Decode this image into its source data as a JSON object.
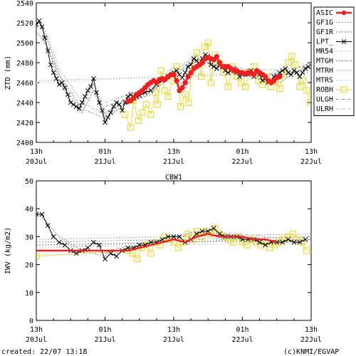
{
  "footer": {
    "created": "created: 22/07 13:18",
    "credit": "(c)KNMI/EGVAP"
  },
  "chart_data": [
    {
      "type": "line",
      "title": "",
      "ylabel": "ZTD (mm)",
      "xlabel": "",
      "x_unit": "hours since 20Jul 13h",
      "xlim": [
        0,
        48
      ],
      "ylim": [
        2400,
        2540
      ],
      "yticks": [
        2400,
        2420,
        2440,
        2460,
        2480,
        2500,
        2520,
        2540
      ],
      "xticks": [
        {
          "x": 0,
          "line1": "13h",
          "line2": "20Jul"
        },
        {
          "x": 12,
          "line1": "01h",
          "line2": "21Jul"
        },
        {
          "x": 24,
          "line1": "13h",
          "line2": "21Jul"
        },
        {
          "x": 36,
          "line1": "01h",
          "line2": "22Jul"
        },
        {
          "x": 48,
          "line1": "13h",
          "line2": "22Jul"
        }
      ],
      "legend_position": "right",
      "legend": [
        "ASIC",
        "GF1G",
        "GF1R",
        "LPT_",
        "MR54",
        "MTGH",
        "MTRH",
        "MTRS",
        "ROBH",
        "ULGH",
        "ULRH"
      ],
      "series": [
        {
          "name": "LPT_",
          "color": "#000000",
          "marker": "x",
          "x": [
            0,
            0.5,
            1,
            1.5,
            2,
            2.5,
            3,
            3.5,
            4,
            4.5,
            5,
            5.5,
            6,
            6.5,
            7,
            7.5,
            8,
            8.5,
            9,
            9.5,
            10,
            10.5,
            11,
            11.5,
            12,
            12.5,
            13,
            13.5,
            14,
            14.5,
            15,
            15.5,
            16,
            16.5,
            17,
            17.5,
            18,
            19,
            20,
            21,
            22,
            23,
            24,
            24.5,
            25,
            25.5,
            26,
            26.5,
            27,
            27.5,
            28,
            28.5,
            29,
            29.5,
            30,
            30.5,
            31,
            31.5,
            32,
            32.5,
            33,
            33.5,
            34,
            34.5,
            35,
            35.5,
            36,
            36.5,
            37,
            37.5,
            38,
            38.5,
            39,
            39.5,
            40,
            40.5,
            41,
            41.5,
            42,
            42.5,
            43,
            43.5,
            44,
            44.5,
            45,
            45.5,
            46,
            46.5,
            47,
            47.5
          ],
          "y": [
            2518,
            2522,
            2516,
            2505,
            2492,
            2478,
            2470,
            2464,
            2458,
            2460,
            2455,
            2448,
            2440,
            2438,
            2436,
            2434,
            2440,
            2446,
            2452,
            2456,
            2464,
            2450,
            2440,
            2432,
            2420,
            2425,
            2430,
            2436,
            2440,
            2438,
            2432,
            2440,
            2446,
            2448,
            2444,
            2446,
            2447,
            2450,
            2452,
            2458,
            2462,
            2466,
            2470,
            2472,
            2468,
            2465,
            2470,
            2476,
            2478,
            2484,
            2482,
            2478,
            2484,
            2488,
            2486,
            2478,
            2476,
            2474,
            2478,
            2476,
            2472,
            2470,
            2472,
            2474,
            2470,
            2466,
            2468,
            2470,
            2468,
            2472,
            2466,
            2470,
            2468,
            2462,
            2464,
            2460,
            2462,
            2466,
            2466,
            2470,
            2472,
            2474,
            2470,
            2468,
            2472,
            2470,
            2466,
            2470,
            2474,
            2476
          ]
        },
        {
          "name": "ASIC",
          "color": "#ee2020",
          "marker": "circle",
          "x": [
            16,
            16.5,
            17,
            17.5,
            18,
            18.5,
            19,
            19.5,
            20,
            20.5,
            21,
            21.5,
            22,
            22.5,
            23,
            23.5,
            24,
            24.5,
            25,
            25.5,
            26,
            26.5,
            27,
            27.5,
            28,
            28.5,
            29,
            29.5,
            30,
            30.5,
            31,
            31.5,
            32,
            32.5,
            33,
            33.5,
            34,
            34.5,
            35,
            35.5,
            36,
            36.5,
            37,
            37.5,
            38,
            38.5,
            39,
            39.5,
            40,
            40.5,
            41,
            41.5,
            42,
            42.5
          ],
          "y": [
            2441,
            2442,
            2445,
            2448,
            2450,
            2452,
            2455,
            2458,
            2460,
            2462,
            2460,
            2463,
            2464,
            2463,
            2466,
            2468,
            2468,
            2462,
            2452,
            2455,
            2460,
            2466,
            2470,
            2474,
            2476,
            2478,
            2480,
            2484,
            2485,
            2484,
            2483,
            2486,
            2480,
            2476,
            2476,
            2476,
            2474,
            2472,
            2472,
            2470,
            2470,
            2469,
            2470,
            2470,
            2468,
            2472,
            2470,
            2468,
            2466,
            2462,
            2460,
            2462,
            2465,
            2466
          ]
        },
        {
          "name": "ROBH",
          "color": "#e8d840",
          "marker": "square",
          "x": [
            15.5,
            16.5,
            17,
            17.8,
            18.5,
            19.2,
            20,
            20.8,
            21.2,
            21.8,
            22.4,
            23,
            23.8,
            24.5,
            25.2,
            26,
            26.6,
            27.2,
            28,
            28.8,
            29.4,
            30,
            30.5,
            31.2,
            32,
            32.8,
            33.5,
            34.2,
            35,
            35.8,
            36.5,
            37.2,
            38,
            38.8,
            39.5,
            40.2,
            41,
            41.8,
            42.5,
            43.2,
            44,
            44.6,
            45.2,
            46,
            46.6,
            47.2,
            47.8
          ],
          "y": [
            2428,
            2415,
            2442,
            2422,
            2430,
            2438,
            2428,
            2450,
            2438,
            2472,
            2452,
            2446,
            2462,
            2476,
            2436,
            2448,
            2440,
            2474,
            2490,
            2466,
            2496,
            2500,
            2460,
            2488,
            2480,
            2470,
            2456,
            2476,
            2466,
            2460,
            2456,
            2470,
            2476,
            2462,
            2458,
            2466,
            2456,
            2462,
            2454,
            2468,
            2480,
            2486,
            2478,
            2456,
            2462,
            2452,
            2440
          ]
        },
        {
          "name": "GF1G",
          "color": "#999999",
          "style": "dotted",
          "x": [
            0,
            2,
            4,
            6,
            8,
            10,
            12,
            14,
            16,
            18,
            20,
            22,
            24,
            26,
            28,
            30,
            32,
            34,
            36,
            38,
            40,
            42,
            44,
            46,
            48
          ],
          "y": [
            2525,
            2502,
            2468,
            2446,
            2436,
            2460,
            2430,
            2436,
            2444,
            2450,
            2452,
            2466,
            2476,
            2458,
            2480,
            2490,
            2476,
            2474,
            2472,
            2470,
            2464,
            2462,
            2470,
            2476,
            2474
          ]
        },
        {
          "name": "GF1R",
          "color": "#777777",
          "style": "dotted",
          "x": [
            0,
            2,
            4,
            6,
            8,
            10,
            12,
            14,
            16,
            18,
            20,
            22,
            24,
            26,
            28,
            30,
            32,
            34,
            36,
            38,
            40,
            42,
            44,
            46,
            48
          ],
          "y": [
            2512,
            2495,
            2462,
            2440,
            2430,
            2452,
            2425,
            2432,
            2440,
            2444,
            2448,
            2462,
            2470,
            2454,
            2474,
            2484,
            2472,
            2470,
            2468,
            2466,
            2460,
            2458,
            2466,
            2472,
            2478
          ]
        },
        {
          "name": "MR54",
          "color": "#bbbbbb",
          "style": "dotted",
          "x": [
            0,
            48
          ],
          "y": [
            2462,
            2470
          ]
        },
        {
          "name": "MTGH",
          "color": "#888888",
          "style": "dotted",
          "x": [
            1,
            4,
            8,
            12,
            16,
            20,
            24,
            28,
            32,
            36,
            40,
            44,
            47
          ],
          "y": [
            2508,
            2468,
            2434,
            2424,
            2440,
            2450,
            2468,
            2484,
            2476,
            2470,
            2462,
            2470,
            2472
          ]
        },
        {
          "name": "MTRH",
          "color": "#aaaaaa",
          "style": "dotted",
          "x": [
            1,
            4,
            8,
            12,
            16,
            20,
            24,
            28,
            32,
            36,
            40,
            44,
            47
          ],
          "y": [
            2520,
            2474,
            2440,
            2428,
            2446,
            2454,
            2472,
            2488,
            2480,
            2474,
            2466,
            2474,
            2476
          ]
        },
        {
          "name": "MTRS",
          "color": "#cccccc",
          "style": "dotted",
          "x": [
            0,
            48
          ],
          "y": [
            2460,
            2472
          ]
        },
        {
          "name": "ULGH",
          "color": "#999999",
          "style": "dashed",
          "x": [
            12,
            20,
            28,
            36,
            44,
            48
          ],
          "y": [
            2436,
            2452,
            2482,
            2470,
            2468,
            2476
          ]
        },
        {
          "name": "ULRH",
          "color": "#bbbbbb",
          "style": "dashed",
          "x": [
            12,
            20,
            28,
            36,
            44,
            48
          ],
          "y": [
            2440,
            2456,
            2486,
            2474,
            2472,
            2480
          ]
        }
      ]
    },
    {
      "type": "line",
      "title": "CBW1",
      "ylabel": "IWV (kg/m2)",
      "xlabel": "",
      "x_unit": "hours since 20Jul 13h",
      "xlim": [
        0,
        48
      ],
      "ylim": [
        0,
        50
      ],
      "yticks": [
        0,
        10,
        20,
        30,
        40,
        50
      ],
      "xticks": [
        {
          "x": 0,
          "line1": "13h",
          "line2": "20Jul"
        },
        {
          "x": 12,
          "line1": "01h",
          "line2": "21Jul"
        },
        {
          "x": 24,
          "line1": "13h",
          "line2": "21Jul"
        },
        {
          "x": 36,
          "line1": "01h",
          "line2": "22Jul"
        },
        {
          "x": 48,
          "line1": "13h",
          "line2": "22Jul"
        }
      ],
      "series": [
        {
          "name": "LPT_",
          "color": "#000000",
          "marker": "x",
          "x": [
            0,
            1,
            2,
            3,
            4,
            5,
            6,
            7,
            8,
            9,
            10,
            11,
            12,
            13,
            14,
            15,
            16,
            17,
            18,
            19,
            20,
            21,
            22,
            23,
            24,
            25,
            26,
            27,
            28,
            29,
            30,
            31,
            32,
            33,
            34,
            35,
            36,
            37,
            38,
            39,
            40,
            41,
            42,
            43,
            44,
            45,
            46,
            47
          ],
          "y": [
            38,
            38,
            34,
            30,
            28,
            27,
            25,
            24,
            25,
            26,
            28,
            27,
            22,
            24,
            23,
            25,
            26,
            26,
            27,
            27,
            28,
            28,
            29,
            30,
            30,
            30,
            28,
            29,
            31,
            32,
            32,
            33,
            31,
            30,
            30,
            30,
            29,
            29,
            29,
            28,
            27,
            28,
            28,
            28,
            29,
            28,
            28,
            29
          ]
        },
        {
          "name": "ASIC",
          "color": "#ee2020",
          "marker": "line",
          "x": [
            0,
            16,
            18,
            20,
            22,
            24,
            26,
            28,
            30,
            32,
            34,
            36,
            38,
            40,
            42
          ],
          "y": [
            25,
            25,
            26,
            27,
            28,
            29,
            28,
            30,
            31,
            30,
            30,
            30,
            29,
            29,
            28
          ]
        },
        {
          "name": "ROBH",
          "color": "#e8d840",
          "marker": "square",
          "x": [
            0,
            16,
            16.8,
            17.6,
            18.4,
            19.2,
            20,
            20.8,
            21.6,
            22.4,
            23.2,
            24,
            24.8,
            25.6,
            26.4,
            27.2,
            28,
            28.8,
            29.6,
            30.4,
            31.2,
            32,
            32.8,
            33.6,
            34.4,
            35.2,
            36,
            36.8,
            37.6,
            38.4,
            39.2,
            40,
            40.8,
            41.6,
            42.4,
            43.2,
            44,
            44.8,
            45.6,
            46.4,
            47.2
          ],
          "y": [
            23,
            25,
            24,
            22,
            26,
            27,
            24,
            28,
            27,
            30,
            29,
            28,
            26,
            28,
            31,
            29,
            32,
            30,
            32,
            31,
            33,
            31,
            30,
            29,
            28,
            30,
            28,
            27,
            29,
            28,
            27,
            28,
            26,
            27,
            28,
            29,
            30,
            31,
            29,
            28,
            25
          ]
        },
        {
          "name": "GF1G",
          "color": "#999999",
          "style": "dotted",
          "x": [
            0,
            48
          ],
          "y": [
            28,
            30
          ]
        },
        {
          "name": "GF1R",
          "color": "#777777",
          "style": "dotted",
          "x": [
            0,
            48
          ],
          "y": [
            27,
            29
          ]
        },
        {
          "name": "MR54",
          "color": "#bbbbbb",
          "style": "dotted",
          "x": [
            0,
            48
          ],
          "y": [
            26,
            30
          ]
        },
        {
          "name": "MTGH",
          "color": "#888888",
          "style": "dotted",
          "x": [
            1,
            4,
            8,
            12,
            16,
            20,
            24,
            28,
            32,
            36,
            40,
            44,
            47
          ],
          "y": [
            37,
            30,
            25,
            23,
            25,
            27,
            29,
            32,
            31,
            30,
            29,
            28,
            29
          ]
        },
        {
          "name": "MTRH",
          "color": "#aaaaaa",
          "style": "dotted",
          "x": [
            0,
            48
          ],
          "y": [
            29,
            31
          ]
        },
        {
          "name": "MTRS",
          "color": "#cccccc",
          "style": "dotted",
          "x": [
            0,
            48
          ],
          "y": [
            26,
            28
          ]
        },
        {
          "name": "ULGH",
          "color": "#999999",
          "style": "dashed",
          "x": [
            12,
            20,
            28,
            36,
            44,
            48
          ],
          "y": [
            24,
            27,
            31,
            30,
            28,
            29
          ]
        },
        {
          "name": "ULRH",
          "color": "#bbbbbb",
          "style": "dashed",
          "x": [
            12,
            20,
            28,
            36,
            44,
            48
          ],
          "y": [
            25,
            28,
            32,
            31,
            29,
            30
          ]
        }
      ]
    }
  ]
}
